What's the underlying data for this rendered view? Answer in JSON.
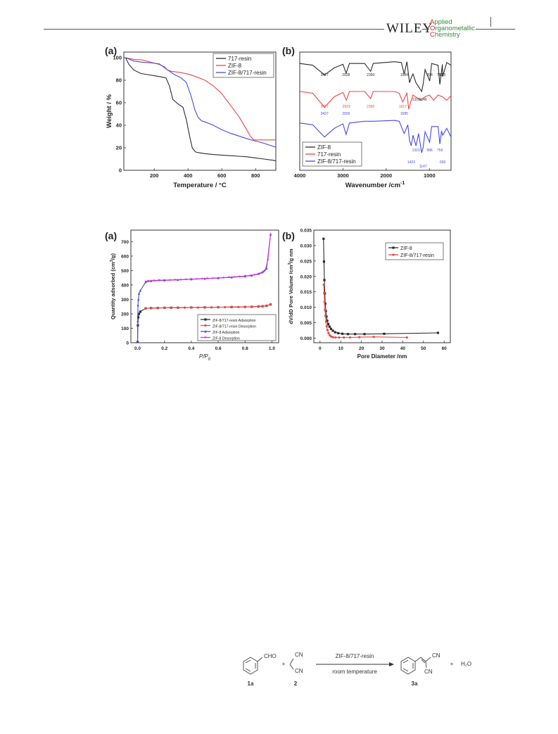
{
  "header": {
    "publisher": "WILEY",
    "journal_lines": [
      {
        "cap": "A",
        "rest": "pplied"
      },
      {
        "cap": "O",
        "rest": "rganometallic"
      },
      {
        "cap": "C",
        "rest": "hemistry"
      }
    ]
  },
  "colors": {
    "black": "#2b2b2b",
    "red": "#ee4444",
    "blue": "#4848e8",
    "magenta": "#cc33cc",
    "frame": "#333333"
  },
  "figure1": {
    "panel_a": {
      "label": "(a)",
      "chart_data": {
        "type": "line",
        "xlabel": "Temperature / °C",
        "ylabel": "Weight / %",
        "xlim": [
          20,
          920
        ],
        "ylim": [
          0,
          105
        ],
        "xticks": [
          200,
          400,
          600,
          800
        ],
        "yticks": [
          0,
          20,
          40,
          60,
          80,
          100
        ],
        "legend_position": "top-right",
        "series": [
          {
            "name": "717-resin",
            "color": "#2b2b2b",
            "x": [
              30,
              50,
              80,
              120,
              160,
              200,
              240,
              270,
              290,
              310,
              340,
              370,
              390,
              410,
              425,
              440,
              450,
              470,
              500,
              550,
              600,
              650,
              700,
              750,
              800,
              850,
              900,
              920
            ],
            "y": [
              100,
              94,
              89,
              86,
              85,
              84,
              83,
              82,
              75,
              63,
              59,
              56,
              45,
              30,
              20,
              17,
              16,
              15.5,
              14.8,
              14,
              13.5,
              13,
              12.5,
              12,
              11,
              10,
              9,
              8.5
            ]
          },
          {
            "name": "ZIF-8",
            "color": "#ee4444",
            "x": [
              30,
              80,
              130,
              180,
              230,
              260,
              280,
              300,
              350,
              400,
              450,
              500,
              550,
              600,
              650,
              700,
              740,
              770,
              790,
              820,
              870,
              920
            ],
            "y": [
              100,
              98.5,
              98,
              96,
              94,
              92,
              89,
              88,
              87,
              85.5,
              83,
              80,
              75,
              68,
              58,
              48,
              38,
              30,
              27,
              27,
              27,
              27
            ]
          },
          {
            "name": "ZIF-8/717-resin",
            "color": "#4848e8",
            "x": [
              30,
              80,
              130,
              180,
              230,
              280,
              320,
              360,
              390,
              420,
              440,
              460,
              480,
              500,
              550,
              600,
              650,
              700,
              750,
              800,
              850,
              900,
              920
            ],
            "y": [
              100,
              97,
              96,
              95.5,
              94.5,
              89,
              85,
              82,
              78,
              65,
              54,
              47,
              44,
              43,
              40,
              36,
              33,
              30.5,
              28,
              26,
              24,
              21.5,
              20.5
            ]
          }
        ]
      }
    },
    "panel_b": {
      "label": "(b)",
      "chart_data": {
        "type": "line",
        "xlabel": "Wavenumber /cm",
        "xlabel_sup": "-1",
        "ylabel": "",
        "xlim": [
          4000,
          500
        ],
        "xticks": [
          4000,
          3000,
          2000,
          1000
        ],
        "legend_position": "bottom-left",
        "series": [
          {
            "name": "ZIF-8",
            "color": "#2b2b2b",
            "x": [
              4000,
              3700,
              3427,
              3200,
              3000,
              2928,
              2850,
              2500,
              2360,
              2300,
              1800,
              1650,
              1584,
              1520,
              1460,
              1420,
              1380,
              1310,
              1180,
              1146,
              1100,
              994,
              950,
              800,
              759,
              700,
              693,
              600,
              500
            ],
            "y": [
              0.08,
              0.1,
              0.21,
              0.13,
              0.09,
              0.19,
              0.08,
              0.08,
              0.17,
              0.08,
              0.06,
              0.07,
              0.2,
              0.06,
              0.3,
              0.24,
              0.2,
              0.3,
              0.4,
              0.32,
              0.15,
              0.28,
              0.08,
              0.1,
              0.32,
              0.09,
              0.23,
              0.07,
              0.1
            ]
          },
          {
            "name": "717-resin",
            "color": "#ee4444",
            "x": [
              4000,
              3700,
              3427,
              3200,
              3000,
              2923,
              2850,
              2500,
              2360,
              2300,
              1800,
              1700,
              1617,
              1520,
              1480,
              1420,
              1380,
              1200,
              1100,
              1000,
              900,
              800,
              700,
              600,
              500
            ],
            "y": [
              0.4,
              0.42,
              0.58,
              0.46,
              0.41,
              0.5,
              0.4,
              0.4,
              0.48,
              0.4,
              0.4,
              0.42,
              0.52,
              0.42,
              0.6,
              0.5,
              0.44,
              0.5,
              0.46,
              0.44,
              0.5,
              0.44,
              0.46,
              0.5,
              0.45
            ]
          },
          {
            "name": "ZIF-8/717-resin",
            "color": "#4848e8",
            "x": [
              4000,
              3700,
              3427,
              3200,
              3000,
              2929,
              2850,
              2500,
              2300,
              1800,
              1700,
              1585,
              1500,
              1460,
              1423,
              1380,
              1310,
              1250,
              1180,
              1147,
              1100,
              996,
              950,
              800,
              759,
              720,
              693,
              600,
              500
            ],
            "y": [
              0.76,
              0.78,
              0.92,
              0.82,
              0.77,
              0.89,
              0.76,
              0.74,
              0.74,
              0.73,
              0.74,
              0.88,
              0.78,
              0.96,
              1.02,
              0.9,
              1.02,
              0.88,
              1.1,
              1.04,
              0.86,
              0.98,
              0.8,
              0.8,
              1.0,
              0.85,
              0.9,
              0.82,
              0.92
            ]
          }
        ],
        "annotations": [
          {
            "text": "3427",
            "x": 3427,
            "color": "#2b2b2b",
            "row": 0
          },
          {
            "text": "2928",
            "x": 2928,
            "color": "#2b2b2b",
            "row": 0
          },
          {
            "text": "2360",
            "x": 2360,
            "color": "#2b2b2b",
            "row": 0
          },
          {
            "text": "1584",
            "x": 1584,
            "color": "#2b2b2b",
            "row": 0
          },
          {
            "text": "1310",
            "x": 1310,
            "color": "#2b2b2b",
            "row": 1
          },
          {
            "text": "1146",
            "x": 1146,
            "color": "#2b2b2b",
            "row": 1
          },
          {
            "text": "994",
            "x": 994,
            "color": "#2b2b2b",
            "row": 0
          },
          {
            "text": "759",
            "x": 759,
            "color": "#2b2b2b",
            "row": 0
          },
          {
            "text": "693",
            "x": 693,
            "color": "#2b2b2b",
            "row": 0
          },
          {
            "text": "3427",
            "x": 3427,
            "color": "#ee4444",
            "row": 2
          },
          {
            "text": "2923",
            "x": 2923,
            "color": "#ee4444",
            "row": 2
          },
          {
            "text": "2360",
            "x": 2360,
            "color": "#ee4444",
            "row": 2
          },
          {
            "text": "1617",
            "x": 1617,
            "color": "#ee4444",
            "row": 2
          },
          {
            "text": "3427",
            "x": 3427,
            "color": "#4848e8",
            "row": 3
          },
          {
            "text": "2929",
            "x": 2929,
            "color": "#4848e8",
            "row": 3
          },
          {
            "text": "1585",
            "x": 1585,
            "color": "#4848e8",
            "row": 3
          },
          {
            "text": "1423",
            "x": 1423,
            "color": "#4848e8",
            "row": 4
          },
          {
            "text": "1310",
            "x": 1310,
            "color": "#4848e8",
            "row": 5
          },
          {
            "text": "1147",
            "x": 1147,
            "color": "#4848e8",
            "row": 6
          },
          {
            "text": "996",
            "x": 996,
            "color": "#4848e8",
            "row": 5
          },
          {
            "text": "759",
            "x": 759,
            "color": "#4848e8",
            "row": 5
          },
          {
            "text": "693",
            "x": 693,
            "color": "#4848e8",
            "row": 4
          }
        ]
      }
    }
  },
  "figure2": {
    "panel_a": {
      "label": "(a)",
      "chart_data": {
        "type": "line",
        "xlabel": "P/P",
        "xlabel_sub": "0",
        "ylabel": "Quantity adsorbed (cm",
        "ylabel_sup": "3",
        "ylabel_tail": "/g)",
        "xlim": [
          -0.05,
          1.05
        ],
        "ylim": [
          0,
          780
        ],
        "xticks": [
          0.0,
          0.2,
          0.4,
          0.6,
          0.8,
          1.0
        ],
        "xtick_labels": [
          "0.0",
          "0.2",
          "0.4",
          "0.6",
          "0.8",
          "1.0"
        ],
        "yticks": [
          0,
          100,
          200,
          300,
          400,
          500,
          600,
          700
        ],
        "legend_position": "bottom-right",
        "series": [
          {
            "name": "ZIF-8/717-resin Adsorption",
            "color": "#2b2b2b",
            "marker": "square",
            "x": [
              0.0,
              0.002,
              0.005,
              0.01,
              0.02,
              0.06,
              0.1,
              0.15,
              0.2,
              0.25,
              0.3,
              0.4,
              0.5,
              0.6,
              0.7,
              0.8,
              0.85,
              0.9,
              0.93,
              0.96,
              0.99
            ],
            "y": [
              5,
              120,
              175,
              200,
              215,
              238,
              240,
              241,
              242,
              243,
              243,
              244,
              245,
              246,
              247,
              248,
              249,
              251,
              253,
              256,
              265
            ]
          },
          {
            "name": "ZIF-8/717-resin Desorption",
            "color": "#ee4444",
            "marker": "circle",
            "x": [
              0.99,
              0.96,
              0.93,
              0.9,
              0.85,
              0.8,
              0.75,
              0.7,
              0.65,
              0.6,
              0.55,
              0.5,
              0.45,
              0.4,
              0.35,
              0.3,
              0.25,
              0.2,
              0.15,
              0.1,
              0.06
            ],
            "y": [
              265,
              256,
              253,
              251,
              249,
              248,
              247,
              247,
              246,
              246,
              245,
              245,
              244,
              244,
              243,
              243,
              243,
              242,
              241,
              240,
              238
            ]
          },
          {
            "name": "ZIF-8 Adsorption",
            "color": "#4848e8",
            "marker": "triangle",
            "x": [
              0.0,
              0.001,
              0.003,
              0.006,
              0.01,
              0.02,
              0.06,
              0.1,
              0.2,
              0.3,
              0.4,
              0.5,
              0.6,
              0.7,
              0.8,
              0.85,
              0.9,
              0.93,
              0.96,
              0.99
            ],
            "y": [
              5,
              150,
              260,
              300,
              340,
              360,
              420,
              428,
              432,
              436,
              440,
              444,
              448,
              453,
              460,
              466,
              478,
              490,
              515,
              750
            ]
          },
          {
            "name": "ZIF-8 Desorption",
            "color": "#cc33cc",
            "marker": "star",
            "x": [
              0.99,
              0.97,
              0.95,
              0.93,
              0.9,
              0.87,
              0.84,
              0.8,
              0.76,
              0.72,
              0.68,
              0.64,
              0.6,
              0.56,
              0.52,
              0.48,
              0.44,
              0.4,
              0.36,
              0.32,
              0.28,
              0.24,
              0.2,
              0.16,
              0.12,
              0.08,
              0.06
            ],
            "y": [
              750,
              575,
              500,
              485,
              475,
              470,
              466,
              462,
              459,
              456,
              453,
              451,
              449,
              447,
              445,
              443,
              441,
              440,
              438,
              437,
              436,
              435,
              434,
              433,
              431,
              428,
              425
            ]
          }
        ]
      }
    },
    "panel_b": {
      "label": "(b)",
      "chart_data": {
        "type": "line",
        "xlabel": "Pore Diameter /nm",
        "ylabel": "dV/dD Pore Volume /cm",
        "ylabel_sup": "3",
        "ylabel_tail": "/g nm",
        "xlim": [
          -3,
          63
        ],
        "ylim": [
          -0.0015,
          0.035
        ],
        "xticks": [
          0,
          10,
          20,
          30,
          40,
          50,
          60
        ],
        "yticks": [
          0.0,
          0.005,
          0.01,
          0.015,
          0.02,
          0.025,
          0.03,
          0.035
        ],
        "ytick_labels": [
          "0.000",
          "0.005",
          "0.010",
          "0.015",
          "0.020",
          "0.025",
          "0.030",
          "0.035"
        ],
        "legend_position": "top-right",
        "series": [
          {
            "name": "ZIF-8",
            "color": "#2b2b2b",
            "marker": "square",
            "x": [
              1.7,
              1.9,
              2.1,
              2.3,
              2.5,
              2.8,
              3.1,
              3.5,
              4.0,
              4.6,
              5.3,
              6.2,
              7.3,
              8.8,
              10.8,
              13.5,
              17.0,
              21.5,
              31.0,
              57.0
            ],
            "y": [
              0.0322,
              0.0248,
              0.0188,
              0.0145,
              0.0112,
              0.0088,
              0.007,
              0.0056,
              0.0045,
              0.0037,
              0.003,
              0.0024,
              0.0019,
              0.0016,
              0.0014,
              0.0013,
              0.0013,
              0.0013,
              0.0014,
              0.0017
            ]
          },
          {
            "name": "ZIF-8/717-resin",
            "color": "#ee4444",
            "marker": "circle",
            "x": [
              1.8,
              2.0,
              2.2,
              2.4,
              2.6,
              2.9,
              3.2,
              3.6,
              4.1,
              4.7,
              5.4,
              6.3,
              7.5,
              9.2,
              11.5,
              14.5,
              19.0,
              26.0,
              42.0
            ],
            "y": [
              0.0173,
              0.0146,
              0.0118,
              0.0092,
              0.0072,
              0.0053,
              0.0038,
              0.0026,
              0.0016,
              0.0009,
              0.0005,
              0.0003,
              0.0002,
              0.0002,
              0.0002,
              0.0002,
              0.0003,
              0.0004,
              0.0002
            ]
          }
        ]
      }
    }
  },
  "scheme": {
    "reactant_1_label": "1a",
    "reactant_1_group": "CHO",
    "plus_1": "+",
    "reactant_2_label": "2",
    "reactant_2_cn_top": "CN",
    "reactant_2_cn_bottom": "CN",
    "catalyst": "ZIF-8/717-resin",
    "condition": "room temperature",
    "product_label": "3a",
    "product_cn_top": "CN",
    "product_cn_bottom": "CN",
    "plus_2": "+",
    "byproduct": "H₂O"
  }
}
